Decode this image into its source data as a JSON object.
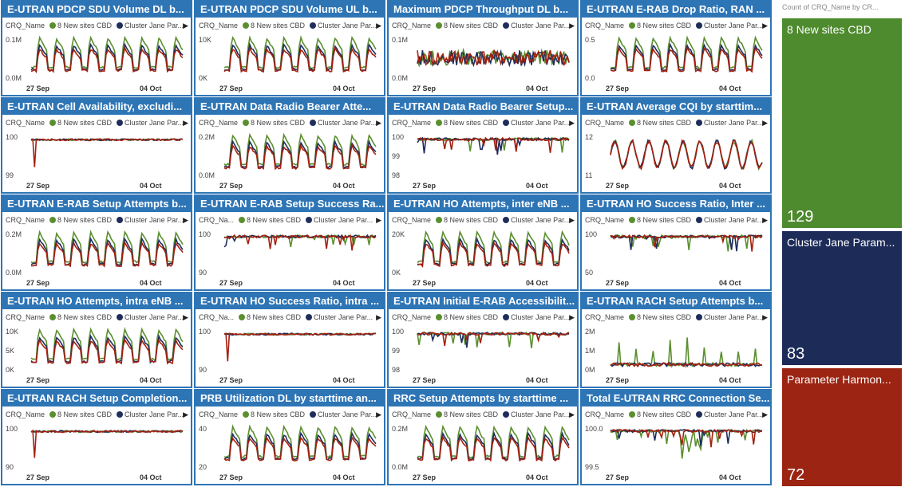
{
  "legend": {
    "field": "CRQ_Name",
    "series": [
      {
        "name": "8 New sites CBD",
        "color": "#5a8f2e"
      },
      {
        "name": "Cluster Jane Par...",
        "color": "#1f2d5c"
      }
    ],
    "hidden_series_color": "#a5210f",
    "arrow": "▶"
  },
  "x_ticks": [
    "27 Sep",
    "04 Oct"
  ],
  "tiles": [
    {
      "title": "E-UTRAN PDCP SDU Volume DL b...",
      "y_ticks": [
        "0.1M",
        "0.0M"
      ],
      "legend_field": "CRQ_Name"
    },
    {
      "title": "E-UTRAN PDCP SDU Volume UL b...",
      "y_ticks": [
        "10K",
        "0K"
      ],
      "legend_field": "CRQ_Name"
    },
    {
      "title": "Maximum PDCP Throughput DL b...",
      "y_ticks": [
        "0.1M",
        "0.0M"
      ],
      "legend_field": "CRQ_Name"
    },
    {
      "title": "E-UTRAN E-RAB Drop Ratio, RAN ...",
      "y_ticks": [
        "0.5",
        "0.0"
      ],
      "legend_field": "CRQ_Name"
    },
    {
      "title": "E-UTRAN Cell Availability, excludi...",
      "y_ticks": [
        "100",
        "99"
      ],
      "legend_field": "CRQ_Name"
    },
    {
      "title": "E-UTRAN Data Radio Bearer Atte...",
      "y_ticks": [
        "0.2M",
        "0.0M"
      ],
      "legend_field": "CRQ_Name"
    },
    {
      "title": "E-UTRAN Data Radio Bearer Setup...",
      "y_ticks": [
        "100",
        "99",
        "98"
      ],
      "legend_field": "CRQ_Name"
    },
    {
      "title": "E-UTRAN Average CQI by starttim...",
      "y_ticks": [
        "12",
        "11"
      ],
      "legend_field": "CRQ_Name"
    },
    {
      "title": "E-UTRAN E-RAB Setup Attempts b...",
      "y_ticks": [
        "0.2M",
        "0.0M"
      ],
      "legend_field": "CRQ_Name"
    },
    {
      "title": "E-UTRAN E-RAB Setup Success Ra...",
      "y_ticks": [
        "100",
        "90"
      ],
      "legend_field": "CRQ_Na..."
    },
    {
      "title": "E-UTRAN HO Attempts, inter eNB ...",
      "y_ticks": [
        "20K",
        "0K"
      ],
      "legend_field": "CRQ_Name"
    },
    {
      "title": "E-UTRAN HO Success Ratio, Inter ...",
      "y_ticks": [
        "100",
        "50"
      ],
      "legend_field": "CRQ_Name"
    },
    {
      "title": "E-UTRAN HO Attempts, intra eNB ...",
      "y_ticks": [
        "10K",
        "5K",
        "0K"
      ],
      "legend_field": "CRQ_Name"
    },
    {
      "title": "E-UTRAN HO Success Ratio, intra ...",
      "y_ticks": [
        "100",
        "90"
      ],
      "legend_field": "CRQ_Na..."
    },
    {
      "title": "E-UTRAN Initial E-RAB Accessibilit...",
      "y_ticks": [
        "100",
        "99",
        "98"
      ],
      "legend_field": "CRQ_Name"
    },
    {
      "title": "E-UTRAN RACH Setup Attempts b...",
      "y_ticks": [
        "2M",
        "1M",
        "0M"
      ],
      "legend_field": "CRQ_Name"
    },
    {
      "title": "E-UTRAN RACH Setup Completion...",
      "y_ticks": [
        "100",
        "90"
      ],
      "legend_field": "CRQ_Name"
    },
    {
      "title": "PRB Utilization DL by starttime an...",
      "y_ticks": [
        "40",
        "20"
      ],
      "legend_field": "CRQ_Name"
    },
    {
      "title": "RRC Setup Attempts by starttime ...",
      "y_ticks": [
        "0.2M",
        "0.0M"
      ],
      "legend_field": "CRQ_Name"
    },
    {
      "title": "Total E-UTRAN RRC Connection Se...",
      "y_ticks": [
        "100.0",
        "99.5"
      ],
      "legend_field": "CRQ_Name"
    }
  ],
  "treemap": {
    "title": "Count of CRQ_Name by CR...",
    "items": [
      {
        "label": "8 New sites CBD",
        "count": "129",
        "color": "#4e8a2e"
      },
      {
        "label": "Cluster Jane Param...",
        "count": "83",
        "color": "#1d2b59"
      },
      {
        "label": "Parameter Harmon...",
        "count": "72",
        "color": "#9c2412"
      }
    ]
  }
}
